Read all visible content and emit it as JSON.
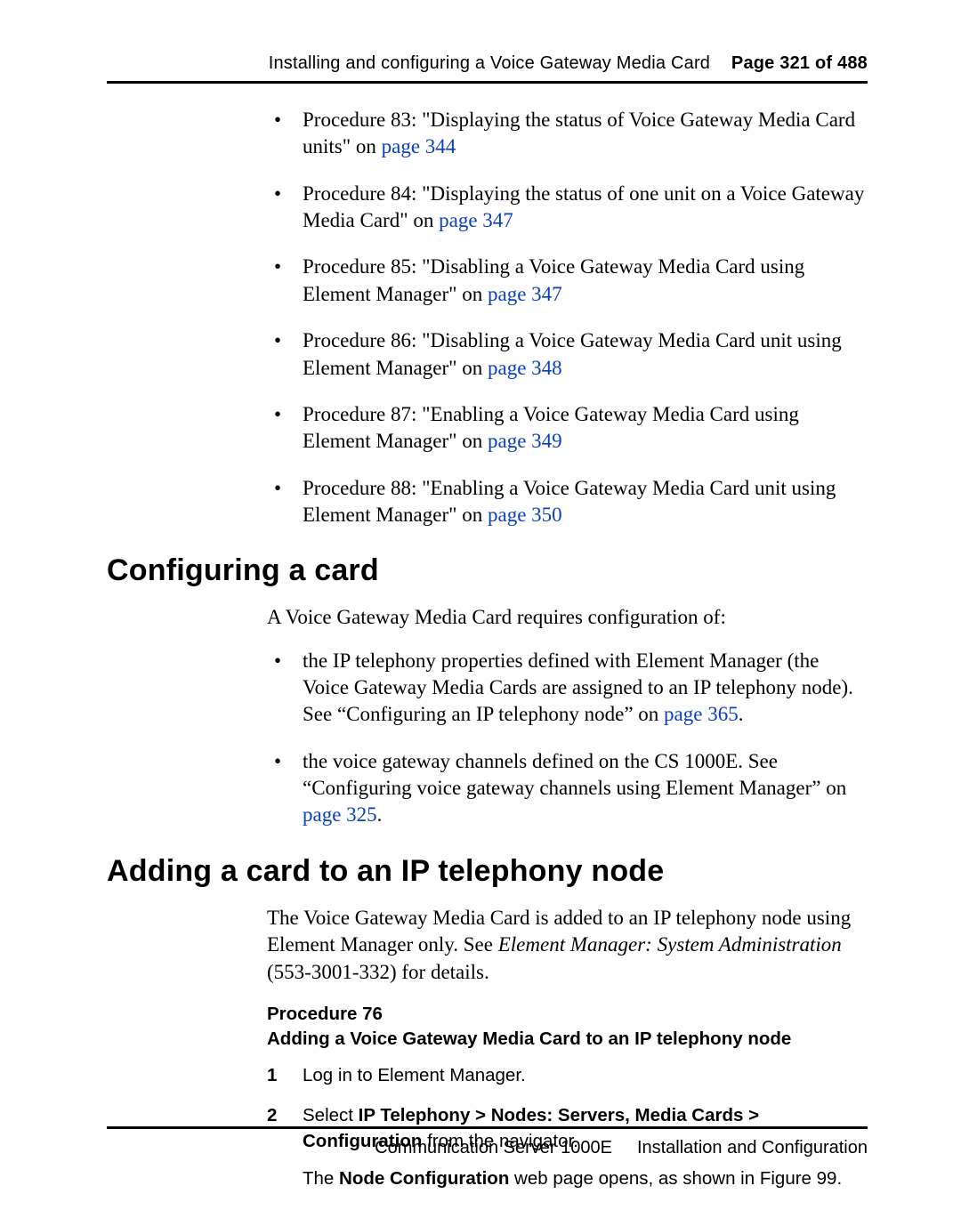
{
  "header": {
    "chapter": "Installing and configuring a Voice Gateway Media Card",
    "page_label": "Page 321 of 488"
  },
  "top_bullets": [
    {
      "pre": "Procedure 83: \"Displaying the status of Voice Gateway Media Card units\" on ",
      "link": "page 344"
    },
    {
      "pre": "Procedure 84: \"Displaying the status of one unit on a Voice Gateway Media Card\" on ",
      "link": "page 347"
    },
    {
      "pre": "Procedure 85: \"Disabling a Voice Gateway Media Card using Element Manager\" on ",
      "link": "page 347"
    },
    {
      "pre": "Procedure 86: \"Disabling a Voice Gateway Media Card unit using Element Manager\" on ",
      "link": "page 348"
    },
    {
      "pre": "Procedure 87: \"Enabling a Voice Gateway Media Card using Element Manager\" on ",
      "link": "page 349"
    },
    {
      "pre": "Procedure 88: \"Enabling a Voice Gateway Media Card unit using Element Manager\" on ",
      "link": "page 350"
    }
  ],
  "section1": {
    "title": "Configuring a card",
    "intro": "A Voice Gateway Media Card requires configuration of:",
    "bullets": [
      {
        "pre": "the IP telephony properties defined with Element Manager (the Voice Gateway Media Cards are assigned to an IP telephony node). See “Configuring an IP telephony node” on ",
        "link": "page 365",
        "post": "."
      },
      {
        "pre": "the voice gateway channels defined on the CS 1000E. See “Configuring voice gateway channels using Element Manager” on ",
        "link": "page 325",
        "post": "."
      }
    ]
  },
  "section2": {
    "title": "Adding a card to an IP telephony node",
    "para_pre": "The Voice Gateway Media Card is added to an IP telephony node using Element Manager only. See ",
    "para_italic": "Element Manager: System Administration",
    "para_post": " (553-3001-332) for details.",
    "proc_num": "Procedure 76",
    "proc_title": "Adding a Voice Gateway Media Card to an IP telephony node",
    "steps": {
      "s1": "Log in to Element Manager.",
      "s2_pre": "Select ",
      "s2_bold": "IP Telephony > Nodes: Servers, Media Cards > Configuration",
      "s2_post": " from the navigator.",
      "s2_sub_pre": "The ",
      "s2_sub_bold": "Node Configuration",
      "s2_sub_post": " web page opens, as shown in Figure 99."
    }
  },
  "footer": {
    "left": "Communication Server 1000E",
    "right": "Installation and Configuration"
  }
}
